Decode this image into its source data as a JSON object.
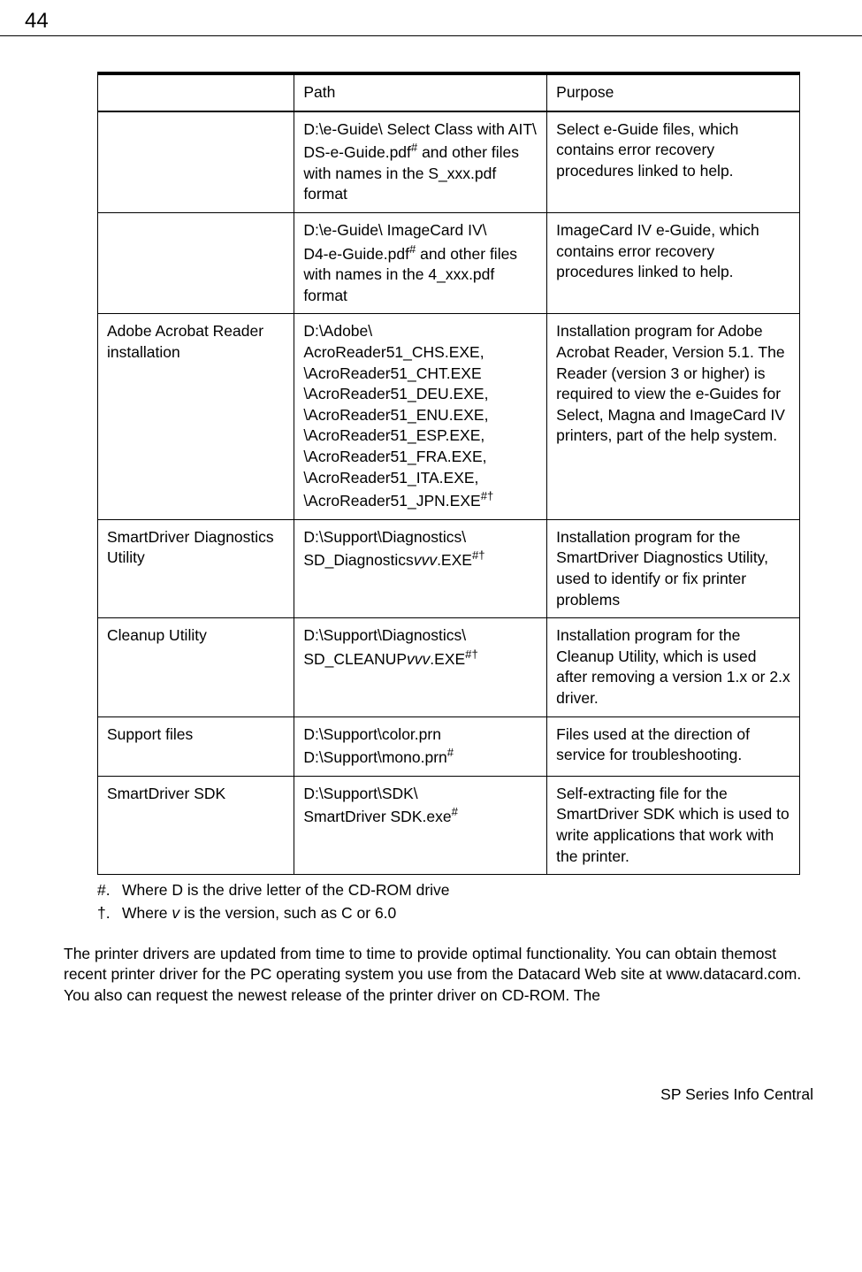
{
  "page_number": "44",
  "table": {
    "header": {
      "path": "Path",
      "purpose": "Purpose"
    },
    "rows": [
      {
        "c1": "",
        "c2_l1": "D:\\e-Guide\\ Select Class with AIT\\",
        "c2_l2a": "DS-e-Guide.pdf",
        "c2_sup1": "#",
        "c2_l2b": " and other files with names in the S_xxx.pdf format",
        "c3": "Select e-Guide files, which contains error recovery procedures linked to help."
      },
      {
        "c1": "",
        "c2_l1": "D:\\e-Guide\\ ImageCard IV\\",
        "c2_l2a": "D4-e-Guide.pdf",
        "c2_sup1": "#",
        "c2_l2b": " and other files with names in the 4_xxx.pdf format",
        "c3": "ImageCard IV e-Guide, which contains error recovery procedures linked to help."
      },
      {
        "c1": "Adobe Acrobat Reader installation",
        "c2_l1": "D:\\Adobe\\",
        "c2_l2": "AcroReader51_CHS.EXE, \\AcroReader51_CHT.EXE \\AcroReader51_DEU.EXE, \\AcroReader51_ENU.EXE, \\AcroReader51_ESP.EXE, \\AcroReader51_FRA.EXE, \\AcroReader51_ITA.EXE,",
        "c2_l3a": "\\AcroReader51_JPN.EXE",
        "c2_sup1": "#†",
        "c3": "Installation program for Adobe Acrobat Reader, Version 5.1. The Reader (version 3 or higher) is required to view the e-Guides for Select, Magna and ImageCard IV printers, part of the help system."
      },
      {
        "c1": "SmartDriver Diagnostics Utility",
        "c2_l1": "D:\\Support\\Diagnostics\\",
        "c2_l2a": "SD_Diagnostics",
        "c2_italic": "vvv",
        "c2_l2b": ".EXE",
        "c2_sup1": "#†",
        "c3": "Installation program for the SmartDriver Diagnostics Utility, used to identify or fix printer problems"
      },
      {
        "c1": "Cleanup Utility",
        "c2_l1": "D:\\Support\\Diagnostics\\",
        "c2_l2a": "SD_CLEANUP",
        "c2_italic": "vvv",
        "c2_l2b": ".EXE",
        "c2_sup1": "#†",
        "c3": "Installation program for the Cleanup Utility, which is used after removing a version 1.x or 2.x driver."
      },
      {
        "c1": "Support files",
        "c2_l1": "D:\\Support\\color.prn",
        "c2_l2a": "D:\\Support\\mono.prn",
        "c2_sup1": "#",
        "c3": "Files used at the direction of service for troubleshooting."
      },
      {
        "c1": "SmartDriver SDK",
        "c2_l1": "D:\\Support\\SDK\\",
        "c2_l2a": "SmartDriver SDK.exe",
        "c2_sup1": "#",
        "c3": "Self-extracting file for the SmartDriver SDK which is used to write applications that work with the printer."
      }
    ]
  },
  "footnotes": {
    "f1_sym": "#.",
    "f1_text": "Where D is the drive letter of the CD-ROM drive",
    "f2_sym": "†.",
    "f2_text_a": "Where ",
    "f2_italic": "v",
    "f2_text_b": " is the version, such as C or 6.0"
  },
  "body_text": "The printer drivers are updated from time to time to provide optimal functionality. You can obtain themost recent printer driver for the PC operating system you use from the Datacard Web site at www.datacard.com. You also can request the newest release of the printer driver on CD-ROM. The",
  "footer": "SP Series Info Central"
}
